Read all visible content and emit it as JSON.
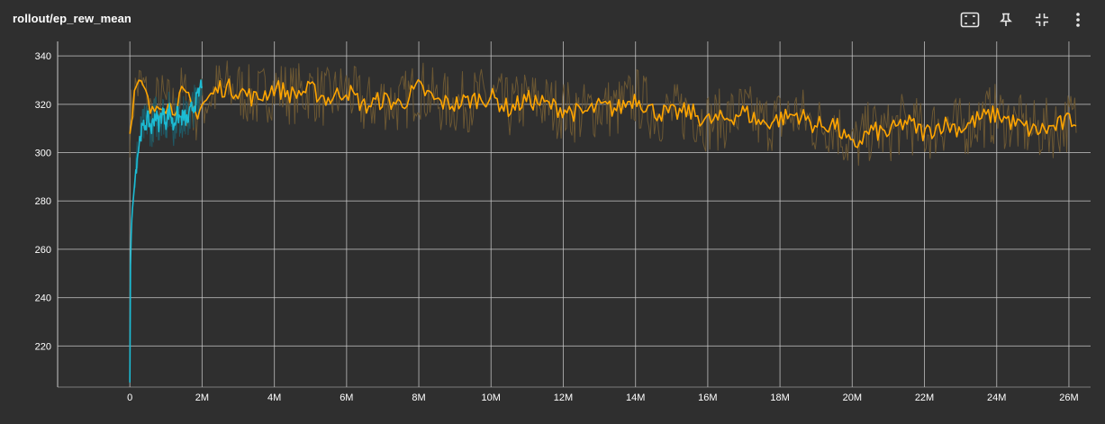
{
  "card": {
    "title": "rollout/ep_rew_mean"
  },
  "toolbar": {
    "buttons": [
      {
        "name": "fit-domain-icon"
      },
      {
        "name": "pin-icon"
      },
      {
        "name": "collapse-icon"
      },
      {
        "name": "more-vert-icon"
      }
    ]
  },
  "colors": {
    "background": "#2f2f2f",
    "grid": "#c8c8c8",
    "tick_text": "#ffffff",
    "series_orange": "#ffa500",
    "series_orange_raw": "#6b5733",
    "series_cyan": "#1cbcd4",
    "series_cyan_raw": "#1f5a66"
  },
  "chart_data": {
    "type": "line",
    "title": "rollout/ep_rew_mean",
    "xlabel": "",
    "ylabel": "",
    "xlim": [
      -2000000,
      26600000
    ],
    "ylim": [
      203,
      346
    ],
    "x_ticks": [
      0,
      2000000,
      4000000,
      6000000,
      8000000,
      10000000,
      12000000,
      14000000,
      16000000,
      18000000,
      20000000,
      22000000,
      24000000,
      26000000
    ],
    "x_tick_labels": [
      "0",
      "2M",
      "4M",
      "6M",
      "8M",
      "10M",
      "12M",
      "14M",
      "16M",
      "18M",
      "20M",
      "22M",
      "24M",
      "26M"
    ],
    "y_ticks": [
      220,
      240,
      260,
      280,
      300,
      320,
      340
    ],
    "y_tick_labels": [
      "220",
      "240",
      "260",
      "280",
      "300",
      "320",
      "340"
    ],
    "grid": true,
    "legend": "none",
    "series": [
      {
        "color": "#ffa500",
        "x": [
          0,
          100000,
          200000,
          400000,
          600000,
          800000,
          1000000,
          1200000,
          1400000,
          1600000,
          1800000,
          2000000,
          2500000,
          3000000,
          3500000,
          4000000,
          4500000,
          5000000,
          5500000,
          6000000,
          6500000,
          7000000,
          7500000,
          8000000,
          8500000,
          9000000,
          9500000,
          10000000,
          10500000,
          11000000,
          11500000,
          12000000,
          12500000,
          13000000,
          13500000,
          14000000,
          14500000,
          15000000,
          15500000,
          16000000,
          16500000,
          17000000,
          17500000,
          18000000,
          18500000,
          19000000,
          19500000,
          20000000,
          20500000,
          21000000,
          21500000,
          22000000,
          22500000,
          23000000,
          23500000,
          24000000,
          24500000,
          25000000,
          25500000,
          26000000,
          26200000
        ],
        "y": [
          311,
          322,
          328,
          326,
          315,
          322,
          320,
          318,
          324,
          322,
          316,
          320,
          327,
          326,
          322,
          327,
          324,
          326,
          322,
          326,
          319,
          322,
          320,
          327,
          321,
          320,
          322,
          323,
          318,
          322,
          320,
          318,
          316,
          319,
          318,
          323,
          317,
          316,
          317,
          313,
          314,
          317,
          312,
          314,
          316,
          311,
          312,
          302,
          309,
          308,
          313,
          308,
          312,
          310,
          314,
          316,
          312,
          309,
          310,
          313,
          314
        ]
      },
      {
        "color": "#1cbcd4",
        "x": [
          0,
          20000,
          50000,
          100000,
          150000,
          200000,
          250000,
          300000,
          400000,
          500000,
          600000,
          700000,
          800000,
          900000,
          1000000,
          1100000,
          1200000,
          1300000,
          1400000,
          1500000,
          1600000,
          1700000,
          1800000,
          1900000,
          2000000
        ],
        "y": [
          205,
          258,
          272,
          282,
          290,
          298,
          303,
          308,
          311,
          314,
          310,
          316,
          312,
          317,
          313,
          318,
          311,
          316,
          314,
          315,
          313,
          318,
          320,
          324,
          330
        ]
      }
    ]
  }
}
